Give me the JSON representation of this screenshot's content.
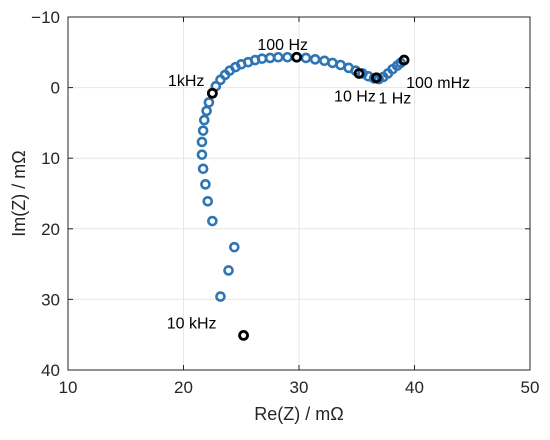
{
  "chart_data": {
    "type": "scatter",
    "title": "",
    "xlabel": "Re(Z) / mΩ",
    "ylabel": "Im(Z) / mΩ",
    "xlim": [
      10,
      50
    ],
    "ylim": [
      40,
      -10
    ],
    "y_reversed": true,
    "x_ticks": [
      "10",
      "20",
      "30",
      "40",
      "50"
    ],
    "y_ticks": [
      "−10",
      "0",
      "10",
      "20",
      "30",
      "40"
    ],
    "grid": true,
    "colors": {
      "series": "#2e75b6",
      "highlight": "#000000",
      "grid": "#e6e6e6",
      "axis": "#262626"
    },
    "series": [
      {
        "name": "",
        "points": [
          [
            23.2,
            29.6
          ],
          [
            23.9,
            25.9
          ],
          [
            24.4,
            22.6
          ],
          [
            22.5,
            18.9
          ],
          [
            22.1,
            16.1
          ],
          [
            21.9,
            13.7
          ],
          [
            21.7,
            11.5
          ],
          [
            21.6,
            9.5
          ],
          [
            21.6,
            7.7
          ],
          [
            21.7,
            6.1
          ],
          [
            21.8,
            4.6
          ],
          [
            22.0,
            3.3
          ],
          [
            22.2,
            2.1
          ],
          [
            22.5,
            0.8
          ],
          [
            22.8,
            -0.2
          ],
          [
            23.2,
            -1.1
          ],
          [
            23.6,
            -1.8
          ],
          [
            24.0,
            -2.4
          ],
          [
            24.5,
            -2.9
          ],
          [
            25.0,
            -3.3
          ],
          [
            25.6,
            -3.6
          ],
          [
            26.2,
            -3.9
          ],
          [
            26.8,
            -4.1
          ],
          [
            27.5,
            -4.2
          ],
          [
            28.2,
            -4.3
          ],
          [
            29.0,
            -4.3
          ],
          [
            29.8,
            -4.3
          ],
          [
            30.6,
            -4.2
          ],
          [
            31.4,
            -4.0
          ],
          [
            32.2,
            -3.8
          ],
          [
            32.9,
            -3.5
          ],
          [
            33.6,
            -3.2
          ],
          [
            34.3,
            -2.8
          ],
          [
            34.9,
            -2.4
          ],
          [
            35.5,
            -2.0
          ],
          [
            36.0,
            -1.6
          ],
          [
            36.5,
            -1.3
          ],
          [
            36.9,
            -1.2
          ],
          [
            37.3,
            -1.5
          ],
          [
            37.7,
            -2.0
          ],
          [
            38.1,
            -2.6
          ],
          [
            38.5,
            -3.1
          ],
          [
            38.8,
            -3.5
          ]
        ]
      }
    ],
    "highlighted_points": [
      {
        "label": "10 kHz",
        "x": 25.2,
        "y": 35.1
      },
      {
        "label": "1kHz",
        "x": 22.5,
        "y": 0.8
      },
      {
        "label": "100 Hz",
        "x": 29.8,
        "y": -4.3
      },
      {
        "label": "10 Hz",
        "x": 35.2,
        "y": -2.0
      },
      {
        "label": "1 Hz",
        "x": 36.7,
        "y": -1.4
      },
      {
        "label": "100 mHz",
        "x": 39.1,
        "y": -3.9
      }
    ]
  }
}
